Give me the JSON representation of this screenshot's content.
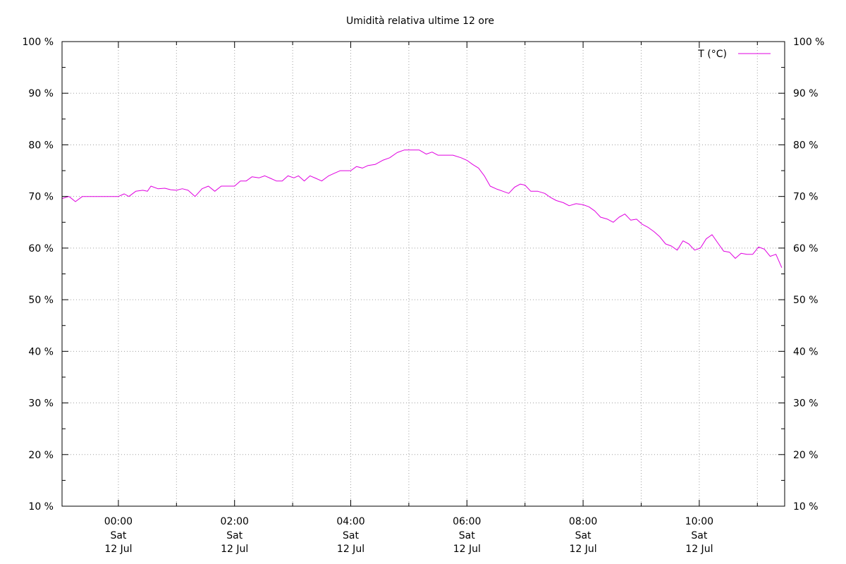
{
  "chart_data": {
    "type": "line",
    "title": "Umidità relativa ultime 12 ore",
    "xlabel": "",
    "ylabel": "",
    "y_unit_suffix": " %",
    "ylim": [
      10,
      100
    ],
    "y_ticks": [
      10,
      20,
      30,
      40,
      50,
      60,
      70,
      80,
      90,
      100
    ],
    "y2_ticks": [
      10,
      20,
      30,
      40,
      50,
      60,
      70,
      80,
      90,
      100
    ],
    "xlim_hours": [
      -0.97,
      11.47
    ],
    "x_ticks": [
      {
        "h": 0,
        "time": "00:00",
        "day": "Sat",
        "date": "12 Jul"
      },
      {
        "h": 2,
        "time": "02:00",
        "day": "Sat",
        "date": "12 Jul"
      },
      {
        "h": 4,
        "time": "04:00",
        "day": "Sat",
        "date": "12 Jul"
      },
      {
        "h": 6,
        "time": "06:00",
        "day": "Sat",
        "date": "12 Jul"
      },
      {
        "h": 8,
        "time": "08:00",
        "day": "Sat",
        "date": "12 Jul"
      },
      {
        "h": 10,
        "time": "10:00",
        "day": "Sat",
        "date": "12 Jul"
      }
    ],
    "x_minor_step_hours": 1,
    "grid": true,
    "legend": {
      "position": "top-right"
    },
    "series": [
      {
        "name": "T (°C)",
        "color": "#e000e0",
        "x_hours": [
          -0.97,
          -0.85,
          -0.74,
          -0.62,
          -0.5,
          -0.36,
          -0.2,
          0.0,
          0.1,
          0.18,
          0.3,
          0.42,
          0.5,
          0.56,
          0.68,
          0.8,
          0.9,
          1.0,
          1.1,
          1.2,
          1.32,
          1.44,
          1.55,
          1.66,
          1.77,
          1.88,
          2.0,
          2.1,
          2.2,
          2.3,
          2.42,
          2.52,
          2.62,
          2.72,
          2.82,
          2.92,
          3.02,
          3.1,
          3.2,
          3.3,
          3.4,
          3.5,
          3.62,
          3.72,
          3.82,
          3.92,
          4.0,
          4.1,
          4.2,
          4.3,
          4.42,
          4.55,
          4.67,
          4.8,
          4.92,
          5.05,
          5.18,
          5.3,
          5.4,
          5.5,
          5.62,
          5.76,
          5.9,
          6.0,
          6.1,
          6.2,
          6.3,
          6.4,
          6.52,
          6.62,
          6.72,
          6.82,
          6.92,
          7.0,
          7.1,
          7.22,
          7.34,
          7.44,
          7.54,
          7.66,
          7.76,
          7.88,
          8.0,
          8.1,
          8.2,
          8.3,
          8.42,
          8.52,
          8.62,
          8.72,
          8.82,
          8.92,
          9.02,
          9.12,
          9.22,
          9.32,
          9.42,
          9.52,
          9.62,
          9.72,
          9.82,
          9.92,
          10.02,
          10.12,
          10.22,
          10.32,
          10.42,
          10.52,
          10.62,
          10.72,
          10.82,
          10.92,
          11.02,
          11.12,
          11.22,
          11.32,
          11.42
        ],
        "y": [
          69.6,
          70.0,
          69.0,
          70.0,
          70.0,
          70.0,
          70.0,
          70.0,
          70.5,
          70.0,
          71.0,
          71.2,
          71.0,
          72.0,
          71.5,
          71.6,
          71.3,
          71.2,
          71.5,
          71.2,
          70.0,
          71.5,
          72.0,
          71.0,
          72.0,
          72.0,
          72.0,
          73.0,
          73.0,
          73.8,
          73.6,
          74.0,
          73.5,
          73.0,
          73.0,
          74.0,
          73.6,
          74.0,
          73.0,
          74.0,
          73.5,
          73.0,
          74.0,
          74.5,
          75.0,
          75.0,
          75.0,
          75.8,
          75.5,
          76.0,
          76.2,
          77.0,
          77.5,
          78.5,
          79.0,
          79.0,
          79.0,
          78.2,
          78.6,
          78.0,
          78.0,
          78.0,
          77.5,
          77.0,
          76.2,
          75.5,
          74.0,
          72.0,
          71.4,
          71.0,
          70.6,
          71.8,
          72.4,
          72.2,
          71.0,
          71.0,
          70.6,
          69.8,
          69.2,
          68.8,
          68.2,
          68.6,
          68.4,
          68.0,
          67.2,
          66.0,
          65.6,
          65.0,
          66.0,
          66.6,
          65.4,
          65.6,
          64.6,
          64.0,
          63.2,
          62.2,
          60.8,
          60.4,
          59.6,
          61.4,
          60.8,
          59.6,
          60.0,
          61.8,
          62.6,
          61.0,
          59.4,
          59.2,
          58.0,
          59.0,
          58.8,
          58.8,
          60.2,
          59.8,
          58.4,
          58.8,
          56.2
        ]
      }
    ]
  }
}
